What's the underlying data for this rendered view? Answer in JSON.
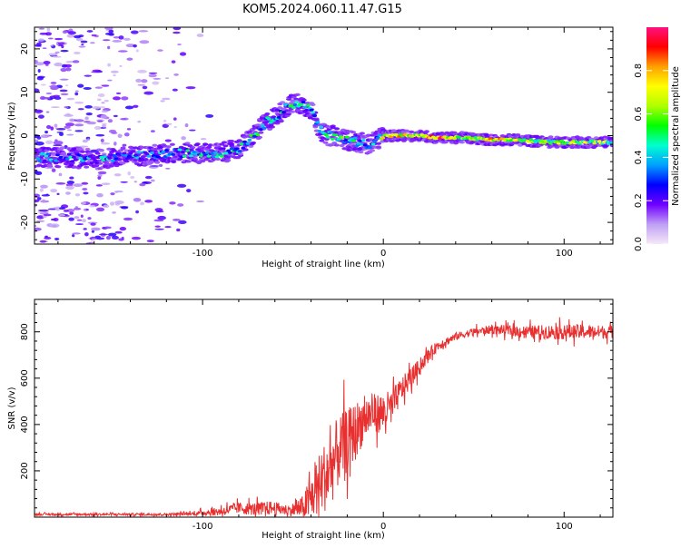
{
  "title": "KOM5.2024.060.11.47.G15",
  "chart_data": [
    {
      "type": "heatmap",
      "xlabel": "Height of straight line (km)",
      "ylabel": "Frequency (Hz)",
      "xlim": [
        -193,
        127
      ],
      "ylim": [
        -25,
        25
      ],
      "xticks": [
        -100,
        0,
        100
      ],
      "yticks": [
        -20,
        -10,
        0,
        10,
        20
      ],
      "colorbar": {
        "label": "Normalized spectral amplitude",
        "range": [
          0,
          1
        ],
        "ticks": [
          0.0,
          0.2,
          0.4,
          0.6,
          0.8
        ],
        "colors": [
          "#f5e8f8",
          "#c0a0f4",
          "#7000ff",
          "#0000ff",
          "#00a0ff",
          "#00ffd0",
          "#00ff00",
          "#b0ff00",
          "#ffff00",
          "#ffa000",
          "#ff0000",
          "#ff1080"
        ]
      },
      "ridge": {
        "x": [
          -190,
          -175,
          -160,
          -145,
          -130,
          -115,
          -100,
          -90,
          -80,
          -72,
          -65,
          -58,
          -52,
          -48,
          -44,
          -40,
          -36,
          -32,
          -26,
          -20,
          -14,
          -8,
          -4,
          0,
          10,
          20,
          30,
          45,
          60,
          75,
          90,
          105,
          127
        ],
        "y": [
          -5,
          -5,
          -5.5,
          -5,
          -4.5,
          -4,
          -4,
          -4,
          -3,
          0,
          3,
          5,
          7,
          7.5,
          7,
          6,
          2,
          0,
          0,
          -1,
          -1.5,
          -2,
          -1,
          0,
          0,
          0,
          -0.5,
          -0.5,
          -1,
          -1,
          -1.5,
          -1.5,
          -1.5
        ],
        "amp": [
          0.3,
          0.3,
          0.3,
          0.3,
          0.3,
          0.35,
          0.35,
          0.35,
          0.38,
          0.4,
          0.42,
          0.42,
          0.4,
          0.38,
          0.35,
          0.35,
          0.4,
          0.45,
          0.45,
          0.42,
          0.4,
          0.35,
          0.4,
          0.65,
          0.7,
          0.55,
          0.85,
          0.5,
          0.75,
          0.6,
          0.55,
          0.6,
          0.55
        ]
      }
    },
    {
      "type": "line",
      "xlabel": "Height of straight line (km)",
      "ylabel": "SNR (v/v)",
      "xlim": [
        -193,
        127
      ],
      "ylim": [
        0,
        940
      ],
      "xticks": [
        -100,
        0,
        100
      ],
      "yticks": [
        200,
        400,
        600,
        800
      ],
      "color": "#e83030",
      "envelope": {
        "x": [
          -193,
          -120,
          -105,
          -90,
          -80,
          -72,
          -62,
          -52,
          -45,
          -40,
          -35,
          -30,
          -25,
          -20,
          -15,
          -10,
          -5,
          0,
          5,
          10,
          15,
          20,
          25,
          30,
          40,
          50,
          60,
          80,
          100,
          127
        ],
        "base": [
          12,
          12,
          15,
          25,
          40,
          35,
          40,
          30,
          40,
          80,
          150,
          200,
          280,
          330,
          380,
          430,
          450,
          450,
          480,
          550,
          600,
          650,
          700,
          740,
          780,
          800,
          810,
          800,
          800,
          800
        ],
        "noise": [
          8,
          10,
          15,
          35,
          45,
          50,
          55,
          40,
          90,
          180,
          250,
          300,
          280,
          250,
          220,
          180,
          150,
          160,
          130,
          100,
          80,
          60,
          50,
          40,
          30,
          30,
          35,
          50,
          60,
          50
        ]
      }
    }
  ]
}
